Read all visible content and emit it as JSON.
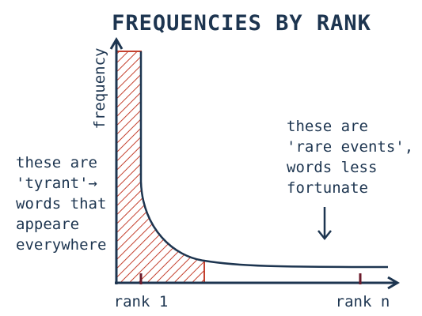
{
  "title": "FREQUENCIES BY RANK",
  "y_axis_label": "frequency",
  "x_labels": [
    "rank 1",
    "rank n"
  ],
  "left_note": [
    "these are",
    "'tyrant'→",
    "words that",
    "appeare",
    "everywhere"
  ],
  "right_note": [
    "these are",
    "'rare events',",
    "words less",
    "fortunate"
  ]
}
